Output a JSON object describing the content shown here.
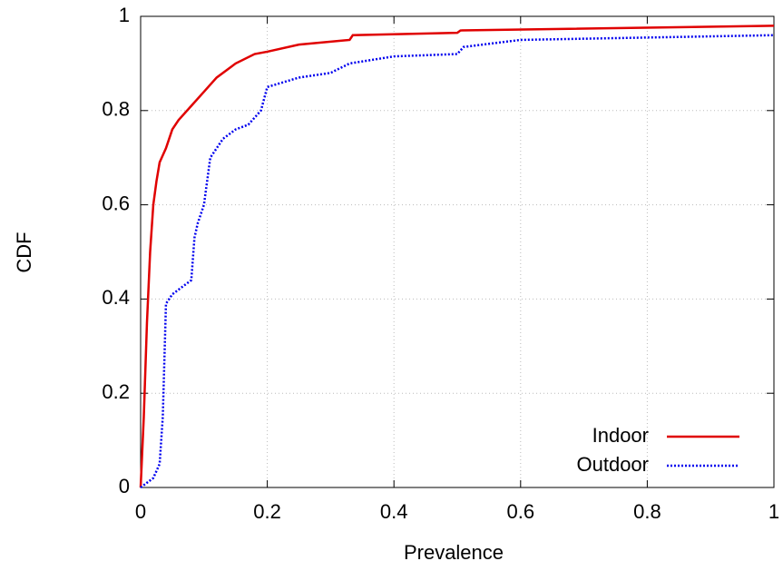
{
  "chart_data": {
    "type": "line",
    "xlabel": "Prevalence",
    "ylabel": "CDF",
    "xlim": [
      0,
      1
    ],
    "ylim": [
      0,
      1
    ],
    "xticks": [
      0,
      0.2,
      0.4,
      0.6,
      0.8,
      1
    ],
    "yticks": [
      0,
      0.2,
      0.4,
      0.6,
      0.8,
      1
    ],
    "grid": true,
    "legend": "lower right",
    "series": [
      {
        "name": "Indoor",
        "color": "#e00000",
        "dash": "solid",
        "x": [
          0,
          0.005,
          0.01,
          0.015,
          0.02,
          0.025,
          0.03,
          0.04,
          0.05,
          0.06,
          0.08,
          0.1,
          0.12,
          0.15,
          0.18,
          0.2,
          0.25,
          0.33,
          0.335,
          0.5,
          0.505,
          1
        ],
        "values": [
          0,
          0.15,
          0.35,
          0.5,
          0.6,
          0.65,
          0.69,
          0.72,
          0.76,
          0.78,
          0.81,
          0.84,
          0.87,
          0.9,
          0.92,
          0.925,
          0.94,
          0.95,
          0.96,
          0.965,
          0.97,
          0.98
        ]
      },
      {
        "name": "Outdoor",
        "color": "#0000ee",
        "dash": "dotted",
        "x": [
          0,
          0.02,
          0.03,
          0.035,
          0.04,
          0.05,
          0.06,
          0.08,
          0.085,
          0.09,
          0.1,
          0.105,
          0.11,
          0.12,
          0.13,
          0.15,
          0.17,
          0.19,
          0.2,
          0.25,
          0.3,
          0.33,
          0.4,
          0.5,
          0.51,
          0.6,
          1
        ],
        "values": [
          0,
          0.02,
          0.05,
          0.15,
          0.39,
          0.41,
          0.42,
          0.44,
          0.53,
          0.56,
          0.6,
          0.65,
          0.7,
          0.72,
          0.74,
          0.76,
          0.77,
          0.8,
          0.85,
          0.87,
          0.88,
          0.9,
          0.915,
          0.92,
          0.935,
          0.95,
          0.96
        ]
      }
    ]
  }
}
